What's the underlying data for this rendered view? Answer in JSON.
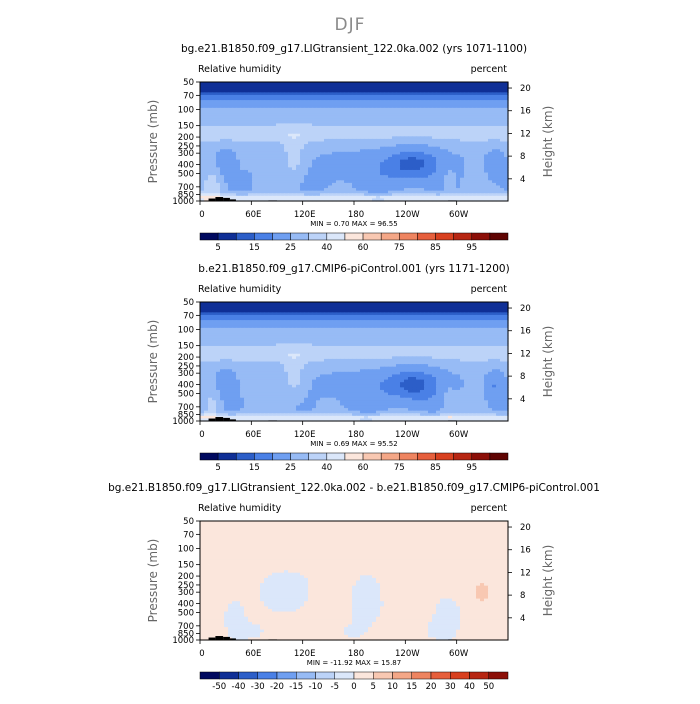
{
  "season": "DJF",
  "panels": [
    {
      "title": "bg.e21.B1850.f09_g17.LIGtransient_122.0ka.002 (yrs 1071-1100)",
      "field_label": "Relative humidity",
      "units_label": "percent",
      "stats": "MIN =    0.70  MAX =   96.55",
      "colorbar": {
        "labels": [
          "5",
          "15",
          "25",
          "40",
          "60",
          "75",
          "85",
          "95"
        ],
        "colors": [
          "#00095f",
          "#0f2f96",
          "#2c5ec8",
          "#4a80e6",
          "#6f9ff1",
          "#97bbf5",
          "#bcd3f8",
          "#dbe7fa",
          "#fbe6dc",
          "#f8c8b2",
          "#f4a787",
          "#ee8460",
          "#e65f3c",
          "#d8401f",
          "#b72612",
          "#8c0f08",
          "#5f0402"
        ]
      },
      "kind": "abs",
      "seed": 1
    },
    {
      "title": "b.e21.B1850.f09_g17.CMIP6-piControl.001 (yrs 1171-1200)",
      "field_label": "Relative humidity",
      "units_label": "percent",
      "stats": "MIN =    0.69  MAX =   95.52",
      "colorbar": {
        "labels": [
          "5",
          "15",
          "25",
          "40",
          "60",
          "75",
          "85",
          "95"
        ],
        "colors": [
          "#00095f",
          "#0f2f96",
          "#2c5ec8",
          "#4a80e6",
          "#6f9ff1",
          "#97bbf5",
          "#bcd3f8",
          "#dbe7fa",
          "#fbe6dc",
          "#f8c8b2",
          "#f4a787",
          "#ee8460",
          "#e65f3c",
          "#d8401f",
          "#b72612",
          "#8c0f08",
          "#5f0402"
        ]
      },
      "kind": "abs",
      "seed": 2
    },
    {
      "title": "bg.e21.B1850.f09_g17.LIGtransient_122.0ka.002 - b.e21.B1850.f09_g17.CMIP6-piControl.001",
      "field_label": "Relative humidity",
      "units_label": "percent",
      "stats": "MIN =  -11.92  MAX =   15.87",
      "colorbar": {
        "labels": [
          "-50",
          "-40",
          "-30",
          "-20",
          "-15",
          "-10",
          "-5",
          "0",
          "5",
          "10",
          "15",
          "20",
          "30",
          "40",
          "50"
        ],
        "colors": [
          "#00095f",
          "#0f2f96",
          "#2c5ec8",
          "#4a80e6",
          "#6f9ff1",
          "#97bbf5",
          "#bcd3f8",
          "#dbe7fa",
          "#fbe6dc",
          "#f8c8b2",
          "#f4a787",
          "#ee8460",
          "#e65f3c",
          "#d8401f",
          "#b72612",
          "#8c0f08"
        ]
      },
      "kind": "diff",
      "seed": 3
    }
  ],
  "axes": {
    "x_ticks": [
      "0",
      "60E",
      "120E",
      "180",
      "120W",
      "60W"
    ],
    "x_range_deg": [
      0,
      360
    ],
    "x_tick_values_deg": [
      0,
      60,
      120,
      180,
      240,
      300
    ],
    "y_label": "Pressure (mb)",
    "y_ticks": [
      "50",
      "70",
      "100",
      "150",
      "200",
      "250",
      "300",
      "400",
      "500",
      "700",
      "850",
      "1000"
    ],
    "y_tick_values_mb": [
      50,
      70,
      100,
      150,
      200,
      250,
      300,
      400,
      500,
      700,
      850,
      1000
    ],
    "y_range_mb": [
      1000,
      50
    ],
    "y_scale": "log",
    "y2_label": "Height (km)",
    "y2_ticks": [
      "20",
      "16",
      "12",
      "8",
      "4"
    ],
    "y2_tick_values_km": [
      20,
      16,
      12,
      8,
      4
    ]
  },
  "chart_data": [
    {
      "type": "heatmap",
      "title": "bg.e21.B1850.f09_g17.LIGtransient_122.0ka.002 (yrs 1071-1100)",
      "variable": "Relative humidity",
      "units": "percent",
      "xlabel": "",
      "ylabel": "Pressure (mb)",
      "y2label": "Height (km)",
      "xlim": [
        0,
        360
      ],
      "ylim": [
        1000,
        50
      ],
      "min": 0.7,
      "max": 96.55,
      "contour_levels": [
        5,
        15,
        25,
        40,
        60,
        75,
        85,
        95
      ]
    },
    {
      "type": "heatmap",
      "title": "b.e21.B1850.f09_g17.CMIP6-piControl.001 (yrs 1171-1200)",
      "variable": "Relative humidity",
      "units": "percent",
      "xlabel": "",
      "ylabel": "Pressure (mb)",
      "y2label": "Height (km)",
      "xlim": [
        0,
        360
      ],
      "ylim": [
        1000,
        50
      ],
      "min": 0.69,
      "max": 95.52,
      "contour_levels": [
        5,
        15,
        25,
        40,
        60,
        75,
        85,
        95
      ]
    },
    {
      "type": "heatmap",
      "title": "bg.e21.B1850.f09_g17.LIGtransient_122.0ka.002 - b.e21.B1850.f09_g17.CMIP6-piControl.001",
      "variable": "Relative humidity",
      "units": "percent",
      "xlabel": "",
      "ylabel": "Pressure (mb)",
      "y2label": "Height (km)",
      "xlim": [
        0,
        360
      ],
      "ylim": [
        1000,
        50
      ],
      "min": -11.92,
      "max": 15.87,
      "contour_levels": [
        -50,
        -40,
        -30,
        -20,
        -15,
        -10,
        -5,
        0,
        5,
        10,
        15,
        20,
        30,
        40,
        50
      ]
    }
  ]
}
